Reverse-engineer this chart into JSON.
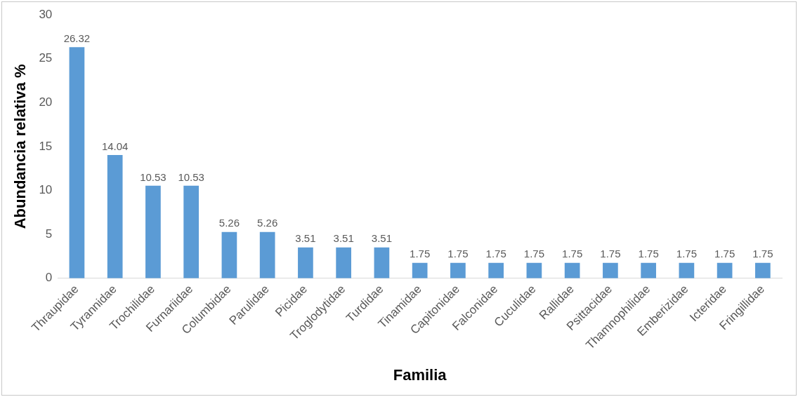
{
  "chart_data": {
    "type": "bar",
    "xlabel": "Familia",
    "ylabel": "Abundancia relativa %",
    "categories": [
      "Thraupidae",
      "Tyrannidae",
      "Trochilidae",
      "Furnariidae",
      "Columbidae",
      "Parulidae",
      "Picidae",
      "Troglodytidae",
      "Turdidae",
      "Tinamidae",
      "Capitonidae",
      "Falconidae",
      "Cuculidae",
      "Rallidae",
      "Psittacidae",
      "Thamnophilidae",
      "Emberizidae",
      "Icteridae",
      "Fringillidae"
    ],
    "values": [
      26.32,
      14.04,
      10.53,
      10.53,
      5.26,
      5.26,
      3.51,
      3.51,
      3.51,
      1.75,
      1.75,
      1.75,
      1.75,
      1.75,
      1.75,
      1.75,
      1.75,
      1.75,
      1.75
    ],
    "color": "#5b9bd5",
    "ylim": [
      0,
      30
    ],
    "yticks": [
      0,
      5,
      10,
      15,
      20,
      25,
      30
    ],
    "grid": false,
    "legend": false,
    "data_labels": true
  }
}
